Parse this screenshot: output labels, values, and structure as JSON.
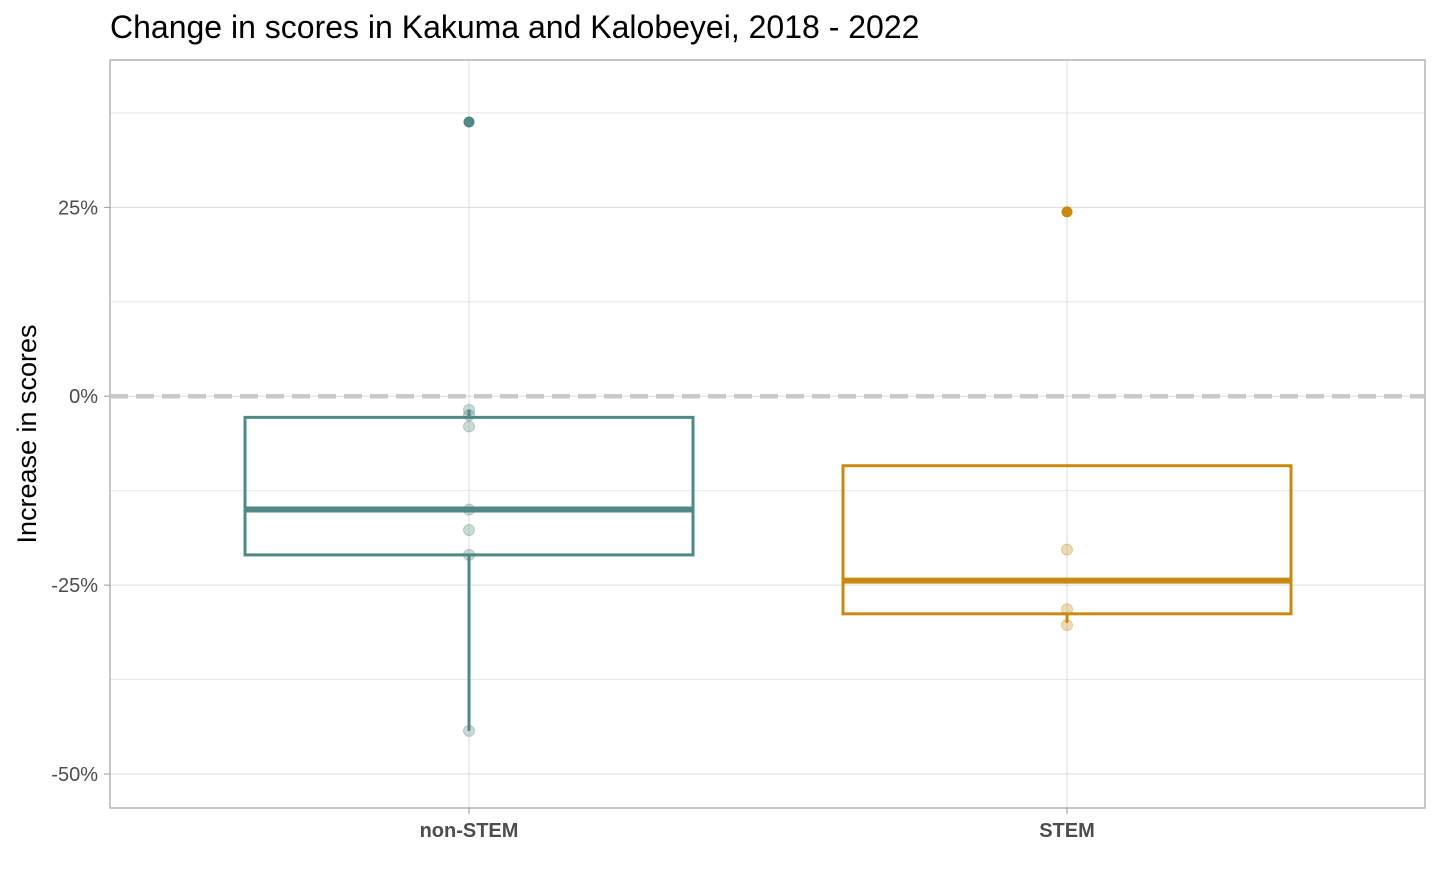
{
  "chart_data": {
    "type": "boxplot",
    "title": "Change in scores in Kakuma and Kalobeyei, 2018 - 2022",
    "xlabel": "",
    "ylabel": "Increase in scores",
    "ylim": [
      -0.545,
      0.445
    ],
    "y_tick_values": [
      0.25,
      0,
      -0.25,
      -0.5
    ],
    "y_tick_labels": [
      "25%",
      "0%",
      "-25%",
      "-50%"
    ],
    "reference_line": {
      "y": 0,
      "style": "dashed",
      "color": "#c8c8c8"
    },
    "grid": true,
    "categories": [
      "non-STEM",
      "STEM"
    ],
    "series": [
      {
        "category": "non-STEM",
        "color": "#4f8884",
        "box": {
          "lower_whisker": -0.443,
          "q1": -0.21,
          "median": -0.15,
          "q3": -0.028,
          "upper_whisker": -0.018
        },
        "outliers": [
          0.363
        ],
        "points": [
          -0.018,
          -0.025,
          -0.04,
          -0.15,
          -0.177,
          -0.21,
          -0.443
        ]
      },
      {
        "category": "STEM",
        "color": "#c88a10",
        "box": {
          "lower_whisker": -0.3,
          "q1": -0.288,
          "median": -0.244,
          "q3": -0.092,
          "upper_whisker": -0.092
        },
        "outliers": [
          0.244
        ],
        "points": [
          -0.203,
          -0.282,
          -0.303
        ]
      }
    ]
  }
}
